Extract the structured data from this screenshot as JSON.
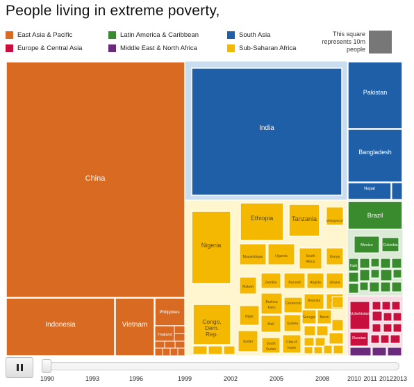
{
  "title": "People living in extreme poverty,",
  "legend": [
    {
      "label": "East Asia & Pacific",
      "color": "#d96a22"
    },
    {
      "label": "Latin America & Caribbean",
      "color": "#3a8a2e"
    },
    {
      "label": "South Asia",
      "color": "#1f5fa8"
    },
    {
      "label": "Europe & Central Asia",
      "color": "#c8103e"
    },
    {
      "label": "Middle East & North Africa",
      "color": "#6b2a7c"
    },
    {
      "label": "Sub-Saharan Africa",
      "color": "#f5b800"
    }
  ],
  "scale_note": "This square represents 10m people",
  "controls": {
    "play_state_icon": "pause-icon",
    "years": [
      "1990",
      "1993",
      "1996",
      "1999",
      "2002",
      "2005",
      "2008",
      "2010",
      "2011",
      "2012",
      "2013"
    ]
  },
  "chart_data": {
    "type": "treemap",
    "title": "People living in extreme poverty,",
    "unit": "millions of people (approx., read from area; 1 square = 10m)",
    "regions": [
      {
        "name": "East Asia & Pacific",
        "color": "#d96a22",
        "items": [
          {
            "name": "China",
            "value": 760
          },
          {
            "name": "Indonesia",
            "value": 95
          },
          {
            "name": "Vietnam",
            "value": 40
          },
          {
            "name": "Philippines",
            "value": 15
          },
          {
            "name": "Thailand",
            "value": 8
          }
        ]
      },
      {
        "name": "South Asia",
        "color": "#1f5fa8",
        "items": [
          {
            "name": "India",
            "value": 440
          },
          {
            "name": "Pakistan",
            "value": 65
          },
          {
            "name": "Bangladesh",
            "value": 55
          },
          {
            "name": "Nepal",
            "value": 12
          }
        ]
      },
      {
        "name": "Sub-Saharan Africa",
        "color": "#f5b800",
        "items": [
          {
            "name": "Nigeria",
            "value": 60
          },
          {
            "name": "Ethiopia",
            "value": 38
          },
          {
            "name": "Tanzania",
            "value": 25
          },
          {
            "name": "Madagascar",
            "value": 12
          },
          {
            "name": "Mozambique",
            "value": 13
          },
          {
            "name": "Uganda",
            "value": 13
          },
          {
            "name": "South Africa",
            "value": 12
          },
          {
            "name": "Kenya",
            "value": 9
          },
          {
            "name": "Malawi",
            "value": 8
          },
          {
            "name": "Zambia",
            "value": 7
          },
          {
            "name": "Burundi",
            "value": 6
          },
          {
            "name": "Angola",
            "value": 6
          },
          {
            "name": "Ghana",
            "value": 6
          },
          {
            "name": "Burkina Faso",
            "value": 6
          },
          {
            "name": "Cameroon",
            "value": 5
          },
          {
            "name": "Rwanda",
            "value": 5
          },
          {
            "name": "Chad",
            "value": 5
          },
          {
            "name": "Niger",
            "value": 7
          },
          {
            "name": "Mali",
            "value": 5
          },
          {
            "name": "Guinea",
            "value": 5
          },
          {
            "name": "Senegal",
            "value": 4
          },
          {
            "name": "Benin",
            "value": 4
          },
          {
            "name": "Congo, Dem. Rep.",
            "value": 35
          },
          {
            "name": "Sudan",
            "value": 8
          },
          {
            "name": "South Sudan",
            "value": 5
          },
          {
            "name": "Côte d'Ivoire",
            "value": 5
          }
        ]
      },
      {
        "name": "Latin America & Caribbean",
        "color": "#3a8a2e",
        "items": [
          {
            "name": "Brazil",
            "value": 30
          },
          {
            "name": "Mexico",
            "value": 10
          },
          {
            "name": "Colombia",
            "value": 6
          },
          {
            "name": "Haiti",
            "value": 6
          }
        ]
      },
      {
        "name": "Europe & Central Asia",
        "color": "#c8103e",
        "items": [
          {
            "name": "Uzbekistan",
            "value": 12
          },
          {
            "name": "Russian Federation",
            "value": 6
          }
        ]
      },
      {
        "name": "Middle East & North Africa",
        "color": "#6b2a7c",
        "items": []
      }
    ],
    "labels": {
      "china": "China",
      "indonesia": "Indonesia",
      "vietnam": "Vietnam",
      "philippines": "Philippines",
      "thailand": "Thailand",
      "india": "India",
      "pakistan": "Pakistan",
      "bangladesh": "Bangladesh",
      "nepal": "Nepal",
      "nigeria": "Nigeria",
      "ethiopia": "Ethiopia",
      "tanzania": "Tanzania",
      "madagascar": "Madagascar",
      "mozambique": "Mozambique",
      "uganda": "Uganda",
      "south_africa_1": "South",
      "south_africa_2": "Africa",
      "kenya": "Kenya",
      "malawi": "Malawi",
      "zambia": "Zambia",
      "burundi": "Burundi",
      "angola": "Angola",
      "ghana": "Ghana",
      "burkina_1": "Burkina",
      "burkina_2": "Faso",
      "cameroon": "Cameroon",
      "rwanda": "Rwanda",
      "chad": "Chad",
      "niger": "Niger",
      "mali": "Mali",
      "guinea": "Guinea",
      "senegal": "Senegal",
      "benin": "Benin",
      "congo_1": "Congo,",
      "congo_2": "Dem.",
      "congo_3": "Rep.",
      "sudan": "Sudan",
      "south_sudan_1": "South",
      "south_sudan_2": "Sudan",
      "cote_1": "Côte d'",
      "cote_2": "Ivoire",
      "brazil": "Brazil",
      "mexico": "Mexico",
      "colombia": "Colombia",
      "haiti": "Haiti",
      "uzbekistan": "Uzbekistan",
      "russia": "Russian"
    }
  }
}
